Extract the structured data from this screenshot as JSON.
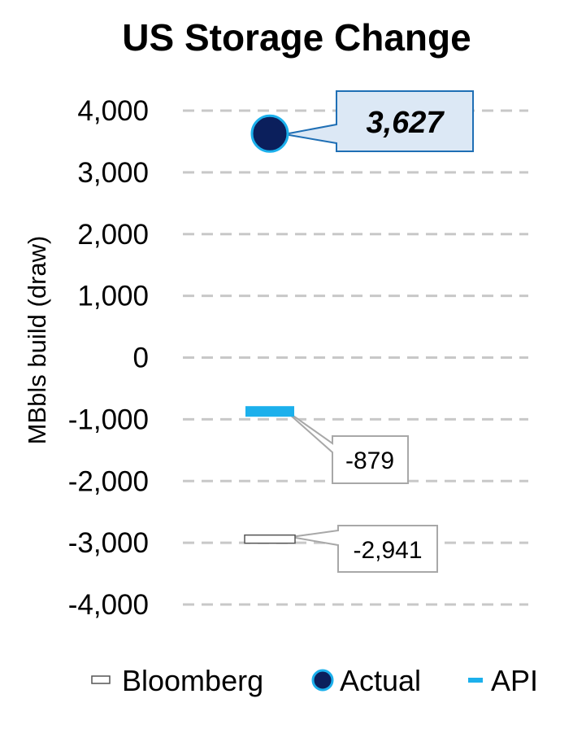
{
  "chart_data": {
    "type": "scatter",
    "title": "US Storage Change",
    "ylabel": "MBbls build (draw)",
    "xlabel": "",
    "ylim": [
      -4000,
      4000
    ],
    "yticks": [
      4000,
      3000,
      2000,
      1000,
      0,
      -1000,
      -2000,
      -3000,
      -4000
    ],
    "ytick_labels": [
      "4,000",
      "3,000",
      "2,000",
      "1,000",
      "0",
      "-1,000",
      "-2,000",
      "-3,000",
      "-4,000"
    ],
    "grid": true,
    "legend_position": "bottom",
    "series": [
      {
        "name": "Bloomberg",
        "value": -2941,
        "label": "-2,941",
        "marker": "dash-outline",
        "color": "#ffffff"
      },
      {
        "name": "Actual",
        "value": 3627,
        "label": "3,627",
        "marker": "circle",
        "color": "#0b1f5c"
      },
      {
        "name": "API",
        "value": -879,
        "label": "-879",
        "marker": "dash",
        "color": "#1cb0ec"
      }
    ]
  },
  "colors": {
    "grid": "#c8c8c8",
    "actual_fill": "#0b1f5c",
    "actual_stroke": "#1cb0ec",
    "api": "#1cb0ec",
    "callout_main_fill": "#dce8f5",
    "callout_main_stroke": "#1f6fb5",
    "callout_stroke": "#a8a8a8"
  }
}
